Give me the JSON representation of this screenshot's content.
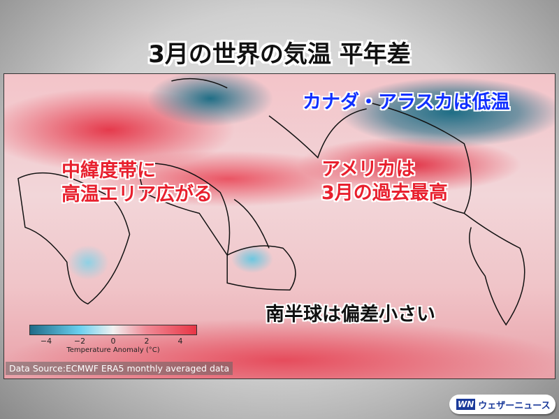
{
  "title": "3月の世界の気温 平年差",
  "annotations": {
    "canada": "カナダ・アラスカは低温",
    "midlat_1": "中緯度帯に",
    "midlat_2": "高温エリア広がる",
    "usa_1": "アメリカは",
    "usa_2": "3月の過去最高",
    "south": "南半球は偏差小さい"
  },
  "legend": {
    "ticks": [
      "−4",
      "−2",
      "0",
      "2",
      "4"
    ],
    "label": "Temperature Anomaly (°C)",
    "colors": {
      "min": "#1f6b88",
      "zero": "#f1f1f1",
      "max": "#e83545"
    }
  },
  "source": "Data Source:ECMWF ERA5 monthly averaged data",
  "logo": {
    "mark": "WN",
    "text": "ウェザーニュース"
  }
}
